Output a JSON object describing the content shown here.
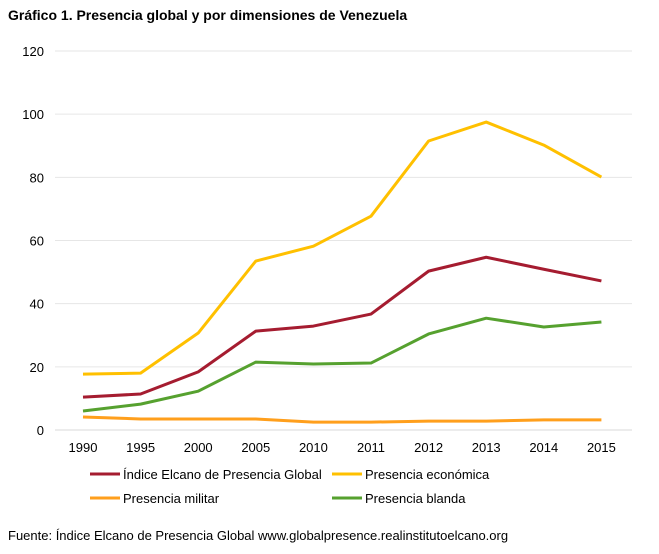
{
  "title": "Gráfico 1. Presencia global y por dimensiones de Venezuela",
  "source": "Fuente: Índice Elcano de Presencia Global www.globalpresence.realinstitutoelcano.org",
  "chart_data": {
    "type": "line",
    "title": "Gráfico 1. Presencia global y por dimensiones de Venezuela",
    "categories": [
      "1990",
      "1995",
      "2000",
      "2005",
      "2010",
      "2011",
      "2012",
      "2013",
      "2014",
      "2015"
    ],
    "ylim": [
      0,
      120
    ],
    "yticks": [
      0,
      20,
      40,
      60,
      80,
      100,
      120
    ],
    "grid": true,
    "legend_position": "bottom",
    "series": [
      {
        "name": "Índice Elcano de Presencia Global",
        "color": "#a51c30",
        "values": [
          10.4,
          11.4,
          18.4,
          31.3,
          32.9,
          36.7,
          50.3,
          54.7,
          50.9,
          47.2
        ]
      },
      {
        "name": "Presencia económica",
        "color": "#ffc000",
        "values": [
          17.7,
          18,
          30.7,
          53.5,
          58.2,
          67.7,
          91.5,
          97.5,
          90.2,
          80.1
        ]
      },
      {
        "name": "Presencia militar",
        "color": "#ff9f1c",
        "values": [
          4.1,
          3.5,
          3.5,
          3.5,
          2.5,
          2.5,
          2.8,
          2.8,
          3.2,
          3.2
        ]
      },
      {
        "name": "Presencia blanda",
        "color": "#56a12f",
        "values": [
          6,
          8.2,
          12.3,
          21.5,
          20.9,
          21.2,
          30.4,
          35.4,
          32.6,
          34.2
        ]
      }
    ]
  }
}
